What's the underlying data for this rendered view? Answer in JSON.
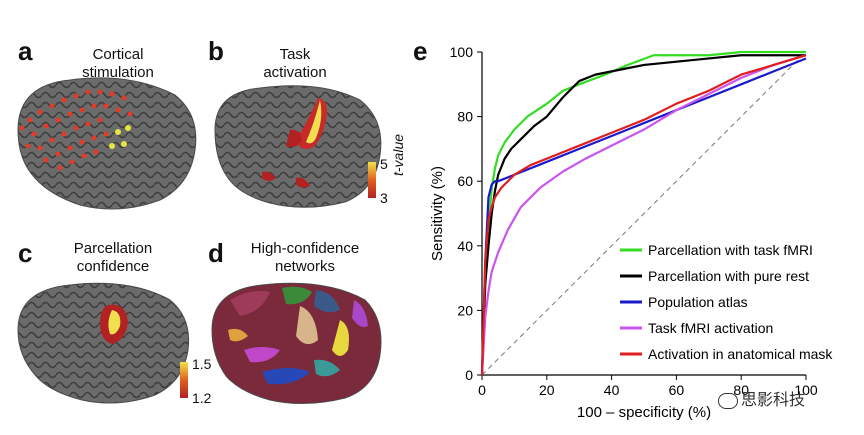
{
  "panels": {
    "a": {
      "letter": "a",
      "title_line1": "Cortical",
      "title_line2": "stimulation"
    },
    "b": {
      "letter": "b",
      "title_line1": "Task",
      "title_line2": "activation",
      "colorbar": {
        "max_label": "5",
        "min_label": "3",
        "axis_label": "t-value",
        "color_low": "#b22222",
        "color_high": "#f2e24a"
      }
    },
    "c": {
      "letter": "c",
      "title_line1": "Parcellation",
      "title_line2": "confidence",
      "colorbar": {
        "max_label": "1.5",
        "min_label": "1.2",
        "color_low": "#b22222",
        "color_high": "#f2e24a"
      }
    },
    "d": {
      "letter": "d",
      "title_line1": "High-confidence",
      "title_line2": "networks"
    },
    "e": {
      "letter": "e"
    }
  },
  "watermark": {
    "text": "思影科技"
  },
  "chart_data": {
    "type": "line",
    "xlabel": "100 – specificity (%)",
    "ylabel": "Sensitivity (%)",
    "xlim": [
      0,
      100
    ],
    "ylim": [
      0,
      100
    ],
    "xticks": [
      "0",
      "20",
      "40",
      "60",
      "80",
      "100"
    ],
    "yticks": [
      "0",
      "20",
      "40",
      "60",
      "80",
      "100"
    ],
    "grid": false,
    "legend_position": "bottom-right",
    "diagonal": {
      "style": "dashed",
      "color": "#777777"
    },
    "series": [
      {
        "name": "Parcellation with task fMRI",
        "color": "#33dd22",
        "x": [
          0,
          1,
          2,
          3,
          4,
          5,
          7,
          10,
          14,
          20,
          25,
          30,
          38,
          45,
          53,
          60,
          70,
          80,
          90,
          100
        ],
        "y": [
          0,
          30,
          45,
          58,
          64,
          68,
          72,
          76,
          80,
          84,
          88,
          90,
          93,
          96,
          99,
          99,
          99,
          100,
          100,
          100
        ]
      },
      {
        "name": "Parcellation with pure rest",
        "color": "#000000",
        "x": [
          0,
          1,
          2,
          3,
          4,
          5,
          7,
          9,
          12,
          16,
          20,
          25,
          30,
          35,
          40,
          50,
          60,
          70,
          80,
          90,
          100
        ],
        "y": [
          0,
          28,
          40,
          50,
          57,
          62,
          67,
          70,
          73,
          77,
          80,
          86,
          91,
          93,
          94,
          96,
          97,
          98,
          99,
          99,
          99
        ]
      },
      {
        "name": "Population atlas",
        "color": "#1a1acc",
        "x": [
          0,
          1,
          2,
          3,
          4,
          5,
          10,
          20,
          30,
          40,
          50,
          60,
          70,
          80,
          90,
          100
        ],
        "y": [
          0,
          35,
          55,
          59,
          60,
          60,
          62,
          66,
          70,
          74,
          78,
          82,
          86,
          90,
          94,
          98
        ]
      },
      {
        "name": "Task fMRI activation",
        "color": "#cc55ee",
        "x": [
          0,
          1,
          2,
          3,
          5,
          8,
          12,
          18,
          25,
          32,
          40,
          50,
          60,
          70,
          80,
          90,
          100
        ],
        "y": [
          0,
          18,
          26,
          32,
          38,
          45,
          52,
          58,
          63,
          67,
          71,
          76,
          82,
          87,
          92,
          96,
          99
        ]
      },
      {
        "name": "Activation in anatomical mask",
        "color": "#e01e1e",
        "x": [
          0,
          1,
          2,
          3,
          4,
          6,
          10,
          15,
          20,
          30,
          40,
          50,
          60,
          70,
          80,
          90,
          100
        ],
        "y": [
          0,
          35,
          48,
          52,
          55,
          58,
          62,
          65,
          67,
          71,
          75,
          79,
          84,
          88,
          93,
          96,
          99
        ]
      }
    ]
  }
}
